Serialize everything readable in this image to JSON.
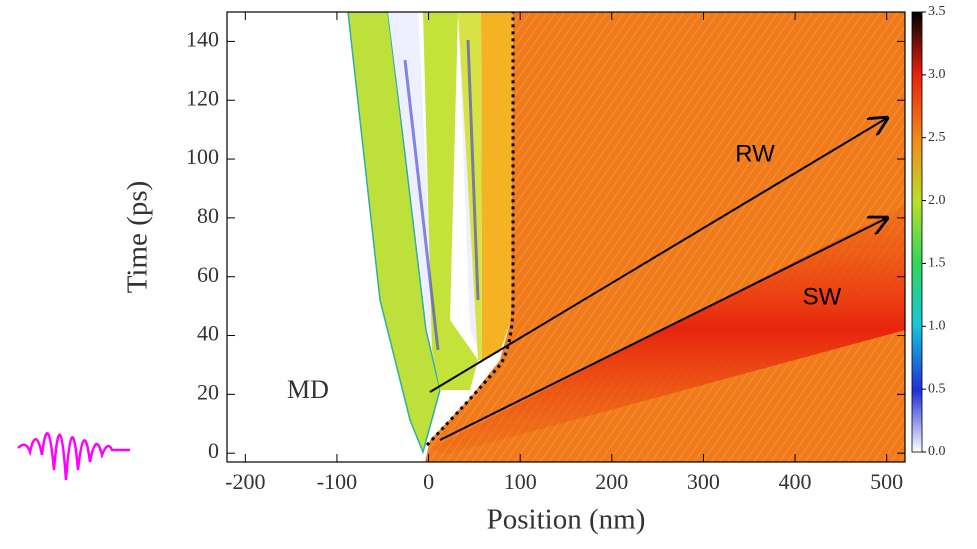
{
  "chart_data": {
    "type": "heatmap",
    "xlabel": "Position (nm)",
    "ylabel": "Time (ps)",
    "xlim": [
      -220,
      520
    ],
    "xticks": [
      -200,
      -100,
      0,
      100,
      200,
      300,
      400,
      500
    ],
    "ylim": [
      -3,
      150
    ],
    "yticks": [
      0,
      20,
      40,
      60,
      80,
      100,
      120,
      140
    ],
    "clim": [
      0,
      3.5
    ],
    "cticks": [
      {
        "value": 0,
        "label": "0.0"
      },
      {
        "value": 0.5,
        "label": "0.5"
      },
      {
        "value": 1,
        "label": "1.0"
      },
      {
        "value": 1.5,
        "label": "1.5"
      },
      {
        "value": 2,
        "label": "2.0"
      },
      {
        "value": 2.5,
        "label": "2.5"
      },
      {
        "value": 3,
        "label": "3.0"
      },
      {
        "value": 3.5,
        "label": "3.5"
      }
    ],
    "annotations": [
      "RW",
      "SW",
      "MD"
    ]
  }
}
